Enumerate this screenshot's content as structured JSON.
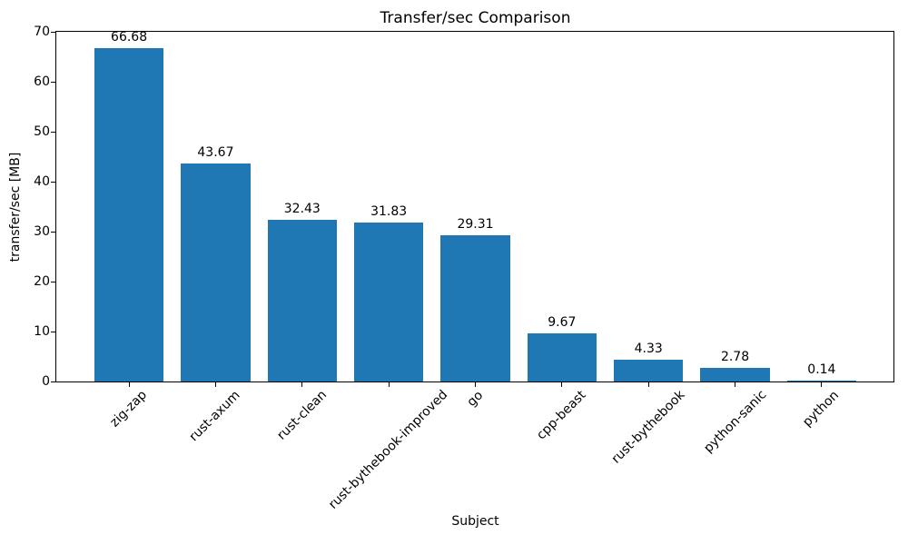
{
  "figure": {
    "background_color": "#ffffff",
    "text_color": "#000000",
    "spine_color": "#000000"
  },
  "chart_data": {
    "type": "bar",
    "title": "Transfer/sec Comparison",
    "xlabel": "Subject",
    "ylabel": "transfer/sec [MB]",
    "categories": [
      "zig-zap",
      "rust-axum",
      "rust-clean",
      "rust-bythebook-improved",
      "go",
      "cpp-beast",
      "rust-bythebook",
      "python-sanic",
      "python"
    ],
    "values": [
      66.68,
      43.67,
      32.43,
      31.83,
      29.31,
      9.67,
      4.33,
      2.78,
      0.14
    ],
    "bar_labels": [
      "66.68",
      "43.67",
      "32.43",
      "31.83",
      "29.31",
      "9.67",
      "4.33",
      "2.78",
      "0.14"
    ],
    "ylim": [
      0,
      70
    ],
    "yticks": [
      0,
      10,
      20,
      30,
      40,
      50,
      60,
      70
    ],
    "x_tick_rotation_deg": 45,
    "bar_color": "#1f77b4",
    "grid": false,
    "legend_position": "none"
  }
}
